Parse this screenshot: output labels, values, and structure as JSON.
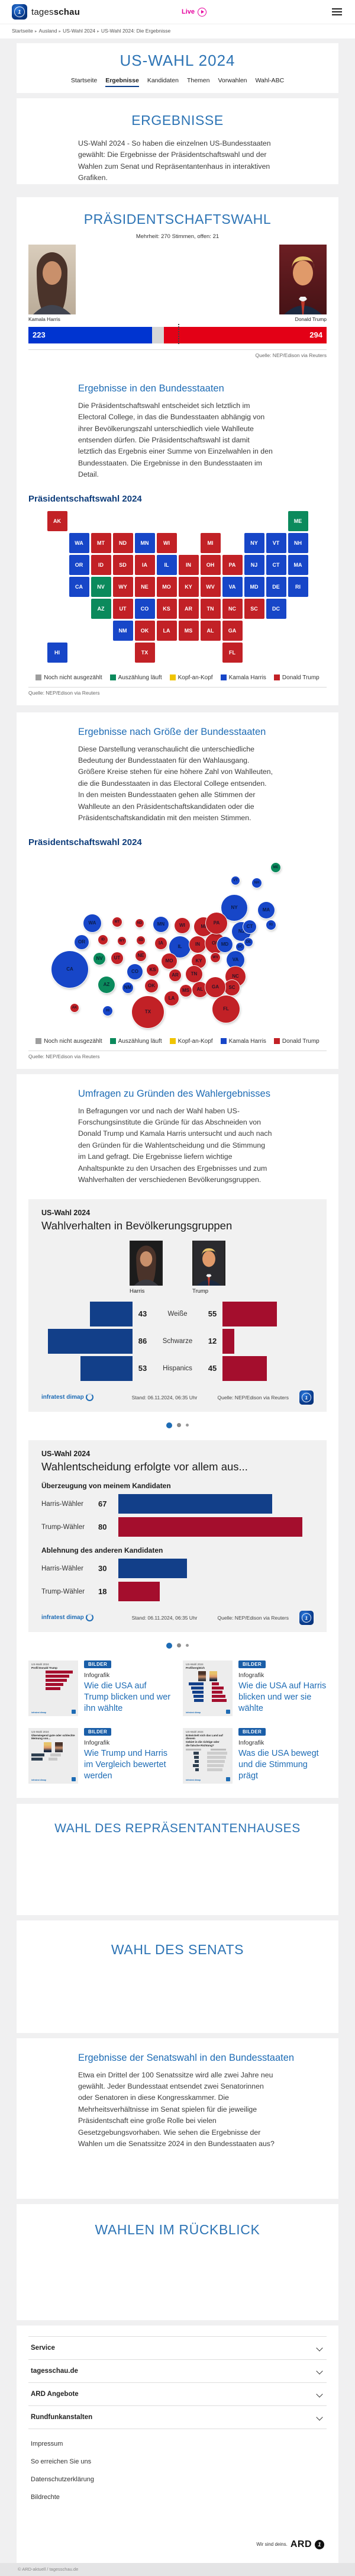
{
  "brand": {
    "name_regular": "tages",
    "name_bold": "schau",
    "live_label": "Live",
    "logo_glyph": "1"
  },
  "breadcrumb": [
    "Startseite",
    "Ausland",
    "US-Wahl 2024",
    "US-Wahl 2024: Die Ergebnisse"
  ],
  "page_title": "US-WAHL 2024",
  "tabs": [
    {
      "label": "Startseite",
      "active": false
    },
    {
      "label": "Ergebnisse",
      "active": true
    },
    {
      "label": "Kandidaten",
      "active": false
    },
    {
      "label": "Themen",
      "active": false
    },
    {
      "label": "Vorwahlen",
      "active": false
    },
    {
      "label": "Wahl-ABC",
      "active": false
    }
  ],
  "source_note": "Quelle: NEP/Edison via Reuters",
  "colors": {
    "undecided": "#9e9e9e",
    "counting": "#0b8a5c",
    "tossup": "#f0c400",
    "harris": "#1746c8",
    "trump": "#c22126",
    "bar_blue": "#0034d0",
    "bar_red": "#e30016",
    "chart_blue": "#123f89",
    "chart_red": "#a40e2d",
    "accent": "#1e6cb5"
  },
  "legend": [
    {
      "label": "Noch nicht ausgezählt",
      "key": "undecided"
    },
    {
      "label": "Auszählung läuft",
      "key": "counting"
    },
    {
      "label": "Kopf-an-Kopf",
      "key": "tossup"
    },
    {
      "label": "Kamala Harris",
      "key": "harris"
    },
    {
      "label": "Donald Trump",
      "key": "trump"
    }
  ],
  "sections": {
    "ergebnisse": {
      "title": "ERGEBNISSE",
      "intro": "US-Wahl 2024 - So haben die einzelnen US-Bundesstaaten gewählt: Die Ergebnisse der Präsidentschaftswahl und der Wahlen zum Senat und Repräsentantenhaus in interaktiven Grafiken."
    },
    "praesident": {
      "title": "PRÄSIDENTSCHAFTSWAHL",
      "harris_name": "Kamala Harris",
      "trump_name": "Donald Trump",
      "sub_heading": "Ergebnisse in den Bundesstaaten",
      "sub_text": "Die Präsidentschaftswahl entscheidet sich letztlich im Electoral College, in das die Bundesstaaten abhängig von ihrer Bevölkerungszahl unterschiedlich viele Wahlleute entsenden dürfen. Die Präsidentschaftswahl ist damit letztlich das Ergebnis einer Summe von Einzelwahlen in den Bundesstaaten. Die Ergebnisse in den Bundesstaaten im Detail.",
      "map_title": "Präsidentschaftswahl 2024"
    },
    "groesse": {
      "heading": "Ergebnisse nach Größe der Bundesstaaten",
      "text": "Diese Darstellung veranschaulicht die unterschiedliche Bedeutung der Bundesstaaten für den Wahlausgang. Größere Kreise stehen für eine höhere Zahl von Wahlleuten, die die Bundesstaaten in das Electoral College entsenden. In den meisten Bundesstaaten gehen alle Stimmen der Wahlleute an den Präsidentschaftskandidaten oder die Präsidentschaftskandidatin mit den meisten Stimmen.",
      "map_title": "Präsidentschaftswahl 2024"
    },
    "umfragen": {
      "heading": "Umfragen zu Gründen des Wahlergebnisses",
      "text": "In Befragungen vor und nach der Wahl haben US-Forschungsinstitute die Gründe für das Abschneiden von Donald Trump und Kamala Harris untersucht und auch nach den Gründen für die Wahlentscheidung und die Stimmung im Land gefragt. Die Ergebnisse liefern wichtige Anhaltspunkte zu den Ursachen des Ergebnisses und zum Wahlverhalten der verschiedenen Bevölkerungsgruppen."
    },
    "repraesentantenhaus": {
      "title": "WAHL DES REPRÄSENTANTENHAUSES"
    },
    "senat": {
      "title": "WAHL DES SENATS"
    },
    "senatswahl": {
      "heading": "Ergebnisse der Senatswahl in den Bundesstaaten",
      "text": "Etwa ein Drittel der 100 Senatssitze wird alle zwei Jahre neu gewählt. Jeder Bundesstaat entsendet zwei Senatorinnen oder Senatoren in diese Kongresskammer. Die Mehrheitsverhältnisse im Senat spielen für die jeweilige Präsidentschaft eine große Rolle bei vielen Gesetzgebungsvorhaben. Wie sehen die Ergebnisse der Wahlen um die Senatssitze 2024 in den Bundesstaaten aus?"
    },
    "rueckblick": {
      "title": "WAHLEN IM RÜCKBLICK"
    }
  },
  "chart_data": [
    {
      "id": "electoral-college",
      "type": "bar",
      "title": "PRÄSIDENTSCHAFTSWAHL",
      "subtitle": "Mehrheit: 270 Stimmen, offen: 21",
      "categories": [
        "Kamala Harris",
        "Donald Trump"
      ],
      "values": [
        223,
        294
      ],
      "open": 21,
      "total": 538,
      "majority": 270,
      "source": "Quelle: NEP/Edison via Reuters"
    },
    {
      "id": "demographics",
      "type": "bar",
      "kicker": "US-Wahl 2024",
      "title": "Wahlverhalten in Bevölkerungsgruppen",
      "categories": [
        "Weiße",
        "Schwarze",
        "Hispanics"
      ],
      "series": [
        {
          "name": "Harris",
          "values": [
            43,
            86,
            53
          ]
        },
        {
          "name": "Trump",
          "values": [
            55,
            12,
            45
          ]
        }
      ],
      "xlim": [
        0,
        90
      ],
      "stand": "Stand:  06.11.2024, 06:35 Uhr",
      "source": "Quelle: NEP/Edison via Reuters",
      "provider": "infratest dimap"
    },
    {
      "id": "decision-reasons",
      "type": "bar",
      "kicker": "US-Wahl 2024",
      "title": "Wahlentscheidung erfolgte vor allem aus...",
      "groups": [
        {
          "label": "Überzeugung von meinem Kandidaten",
          "rows": [
            {
              "label": "Harris-Wähler",
              "value": 67,
              "color": "chart_blue"
            },
            {
              "label": "Trump-Wähler",
              "value": 80,
              "color": "chart_red"
            }
          ]
        },
        {
          "label": "Ablehnung des anderen Kandidaten",
          "rows": [
            {
              "label": "Harris-Wähler",
              "value": 30,
              "color": "chart_blue"
            },
            {
              "label": "Trump-Wähler",
              "value": 18,
              "color": "chart_red"
            }
          ]
        }
      ],
      "xlim": [
        0,
        85
      ],
      "stand": "Stand:  06.11.2024, 06:35 Uhr",
      "source": "Quelle: NEP/Edison via Reuters",
      "provider": "infratest dimap"
    },
    {
      "id": "state-results-map",
      "type": "map",
      "title": "Präsidentschaftswahl 2024",
      "legend": [
        "Noch nicht ausgezählt",
        "Auszählung läuft",
        "Kopf-an-Kopf",
        "Kamala Harris",
        "Donald Trump"
      ],
      "states": [
        {
          "code": "AK",
          "ev": 3,
          "result": "trump",
          "tile": [
            0,
            0
          ],
          "bubble": [
            78,
            261
          ]
        },
        {
          "code": "ME",
          "ev": 4,
          "result": "counting",
          "tile": [
            11,
            0
          ],
          "bubble": [
            418,
            24
          ]
        },
        {
          "code": "WA",
          "ev": 12,
          "result": "harris",
          "tile": [
            1,
            1
          ],
          "bubble": [
            108,
            118
          ]
        },
        {
          "code": "MT",
          "ev": 4,
          "result": "trump",
          "tile": [
            2,
            1
          ],
          "bubble": [
            150,
            116
          ]
        },
        {
          "code": "ND",
          "ev": 3,
          "result": "trump",
          "tile": [
            3,
            1
          ],
          "bubble": [
            188,
            118
          ]
        },
        {
          "code": "MN",
          "ev": 10,
          "result": "harris",
          "tile": [
            4,
            1
          ],
          "bubble": [
            224,
            120
          ]
        },
        {
          "code": "WI",
          "ev": 10,
          "result": "trump",
          "tile": [
            5,
            1
          ],
          "bubble": [
            260,
            122
          ]
        },
        {
          "code": "MI",
          "ev": 15,
          "result": "trump",
          "tile": [
            7,
            1
          ],
          "bubble": [
            296,
            124
          ]
        },
        {
          "code": "NY",
          "ev": 28,
          "result": "harris",
          "tile": [
            9,
            1
          ],
          "bubble": [
            348,
            92
          ]
        },
        {
          "code": "VT",
          "ev": 3,
          "result": "harris",
          "tile": [
            10,
            1
          ],
          "bubble": [
            350,
            46
          ]
        },
        {
          "code": "NH",
          "ev": 4,
          "result": "harris",
          "tile": [
            11,
            1
          ],
          "bubble": [
            386,
            50
          ]
        },
        {
          "code": "OR",
          "ev": 8,
          "result": "harris",
          "tile": [
            1,
            2
          ],
          "bubble": [
            90,
            150
          ]
        },
        {
          "code": "ID",
          "ev": 4,
          "result": "trump",
          "tile": [
            2,
            2
          ],
          "bubble": [
            126,
            146
          ]
        },
        {
          "code": "SD",
          "ev": 3,
          "result": "trump",
          "tile": [
            3,
            2
          ],
          "bubble": [
            190,
            147
          ]
        },
        {
          "code": "IA",
          "ev": 6,
          "result": "trump",
          "tile": [
            4,
            2
          ],
          "bubble": [
            224,
            152
          ]
        },
        {
          "code": "IL",
          "ev": 19,
          "result": "harris",
          "tile": [
            5,
            2
          ],
          "bubble": [
            256,
            158
          ]
        },
        {
          "code": "IN",
          "ev": 11,
          "result": "trump",
          "tile": [
            6,
            2
          ],
          "bubble": [
            286,
            154
          ]
        },
        {
          "code": "OH",
          "ev": 17,
          "result": "trump",
          "tile": [
            7,
            2
          ],
          "bubble": [
            316,
            152
          ]
        },
        {
          "code": "PA",
          "ev": 19,
          "result": "trump",
          "tile": [
            8,
            2
          ],
          "bubble": [
            318,
            118
          ]
        },
        {
          "code": "NJ",
          "ev": 14,
          "result": "harris",
          "tile": [
            9,
            2
          ],
          "bubble": [
            360,
            132
          ]
        },
        {
          "code": "CT",
          "ev": 7,
          "result": "harris",
          "tile": [
            10,
            2
          ],
          "bubble": [
            374,
            124
          ]
        },
        {
          "code": "MA",
          "ev": 11,
          "result": "harris",
          "tile": [
            11,
            2
          ],
          "bubble": [
            402,
            96
          ]
        },
        {
          "code": "CA",
          "ev": 54,
          "result": "harris",
          "tile": [
            1,
            3
          ],
          "bubble": [
            70,
            196
          ]
        },
        {
          "code": "NV",
          "ev": 6,
          "result": "counting",
          "tile": [
            2,
            3
          ],
          "bubble": [
            120,
            178
          ]
        },
        {
          "code": "WY",
          "ev": 3,
          "result": "trump",
          "tile": [
            3,
            3
          ],
          "bubble": [
            158,
            148
          ]
        },
        {
          "code": "NE",
          "ev": 5,
          "result": "trump",
          "tile": [
            4,
            3
          ],
          "bubble": [
            190,
            173
          ]
        },
        {
          "code": "MO",
          "ev": 10,
          "result": "trump",
          "tile": [
            5,
            3
          ],
          "bubble": [
            238,
            182
          ]
        },
        {
          "code": "KY",
          "ev": 8,
          "result": "trump",
          "tile": [
            6,
            3
          ],
          "bubble": [
            288,
            182
          ]
        },
        {
          "code": "WV",
          "ev": 4,
          "result": "trump",
          "tile": [
            7,
            3
          ],
          "bubble": [
            316,
            176
          ]
        },
        {
          "code": "VA",
          "ev": 13,
          "result": "harris",
          "tile": [
            8,
            3
          ],
          "bubble": [
            350,
            180
          ]
        },
        {
          "code": "MD",
          "ev": 10,
          "result": "harris",
          "tile": [
            9,
            3
          ],
          "bubble": [
            332,
            154
          ]
        },
        {
          "code": "DE",
          "ev": 3,
          "result": "harris",
          "tile": [
            10,
            3
          ],
          "bubble": [
            372,
            150
          ]
        },
        {
          "code": "RI",
          "ev": 4,
          "result": "harris",
          "tile": [
            11,
            3
          ],
          "bubble": [
            410,
            121
          ]
        },
        {
          "code": "AZ",
          "ev": 11,
          "result": "counting",
          "tile": [
            2,
            4
          ],
          "bubble": [
            132,
            222
          ]
        },
        {
          "code": "UT",
          "ev": 6,
          "result": "trump",
          "tile": [
            3,
            4
          ],
          "bubble": [
            150,
            177
          ]
        },
        {
          "code": "CO",
          "ev": 10,
          "result": "harris",
          "tile": [
            4,
            4
          ],
          "bubble": [
            180,
            200
          ]
        },
        {
          "code": "KS",
          "ev": 6,
          "result": "trump",
          "tile": [
            5,
            4
          ],
          "bubble": [
            210,
            197
          ]
        },
        {
          "code": "AR",
          "ev": 6,
          "result": "trump",
          "tile": [
            6,
            4
          ],
          "bubble": [
            248,
            206
          ]
        },
        {
          "code": "TN",
          "ev": 11,
          "result": "trump",
          "tile": [
            7,
            4
          ],
          "bubble": [
            280,
            204
          ]
        },
        {
          "code": "NC",
          "ev": 16,
          "result": "trump",
          "tile": [
            8,
            4
          ],
          "bubble": [
            350,
            208
          ]
        },
        {
          "code": "SC",
          "ev": 9,
          "result": "trump",
          "tile": [
            9,
            4
          ],
          "bubble": [
            344,
            227
          ]
        },
        {
          "code": "DC",
          "ev": 3,
          "result": "harris",
          "tile": [
            10,
            4
          ],
          "bubble": [
            358,
            158
          ]
        },
        {
          "code": "NM",
          "ev": 5,
          "result": "harris",
          "tile": [
            3,
            5
          ],
          "bubble": [
            168,
            227
          ]
        },
        {
          "code": "OK",
          "ev": 7,
          "result": "trump",
          "tile": [
            4,
            5
          ],
          "bubble": [
            208,
            224
          ]
        },
        {
          "code": "LA",
          "ev": 8,
          "result": "trump",
          "tile": [
            5,
            5
          ],
          "bubble": [
            242,
            245
          ]
        },
        {
          "code": "MS",
          "ev": 6,
          "result": "trump",
          "tile": [
            6,
            5
          ],
          "bubble": [
            266,
            232
          ]
        },
        {
          "code": "AL",
          "ev": 9,
          "result": "trump",
          "tile": [
            7,
            5
          ],
          "bubble": [
            290,
            230
          ]
        },
        {
          "code": "GA",
          "ev": 16,
          "result": "trump",
          "tile": [
            8,
            5
          ],
          "bubble": [
            316,
            226
          ]
        },
        {
          "code": "HI",
          "ev": 4,
          "result": "harris",
          "tile": [
            0,
            6
          ],
          "bubble": [
            134,
            266
          ]
        },
        {
          "code": "TX",
          "ev": 40,
          "result": "trump",
          "tile": [
            4,
            6
          ],
          "bubble": [
            202,
            268
          ]
        },
        {
          "code": "FL",
          "ev": 30,
          "result": "trump",
          "tile": [
            8,
            6
          ],
          "bubble": [
            334,
            263
          ]
        }
      ]
    }
  ],
  "teasers": [
    {
      "badge": "BILDER",
      "kicker": "Infografik",
      "title": "Wie die USA auf Trump blicken und wer ihn wählte",
      "thumb": "trump-profile",
      "thumb_caption": [
        "US-Wahl 2024",
        "Profil Donald Trump"
      ]
    },
    {
      "badge": "BILDER",
      "kicker": "Infografik",
      "title": "Wie die USA auf Harris blicken und wer sie wählte",
      "thumb": "compare",
      "thumb_caption": [
        "US-Wahl 2024",
        "Profilvergleich"
      ]
    },
    {
      "badge": "BILDER",
      "kicker": "Infografik",
      "title": "Wie Trump und Harris im Vergleich bewertet werden",
      "thumb": "rating",
      "thumb_caption": [
        "US-Wahl 2024",
        "Überwiegend gute oder schlechte",
        "Meinung von..."
      ]
    },
    {
      "badge": "BILDER",
      "kicker": "Infografik",
      "title": "Was die USA bewegt und die Stimmung prägt",
      "thumb": "direction",
      "thumb_caption": [
        "US-Wahl 2024",
        "Entwickelt sich das Land auf diesem",
        "Gebiet in die richtige oder",
        "die falsche Richtung?"
      ]
    }
  ],
  "footer": {
    "accordions": [
      "Service",
      "tagesschau.de",
      "ARD Angebote",
      "Rundfunkanstalten"
    ],
    "links": [
      "Impressum",
      "So erreichen Sie uns",
      "Datenschutzerklärung",
      "Bildrechte"
    ],
    "ard_claim": "Wir sind deins.",
    "ard_brand": "ARD",
    "copyright": "© ARD-aktuell / tagesschau.de"
  }
}
